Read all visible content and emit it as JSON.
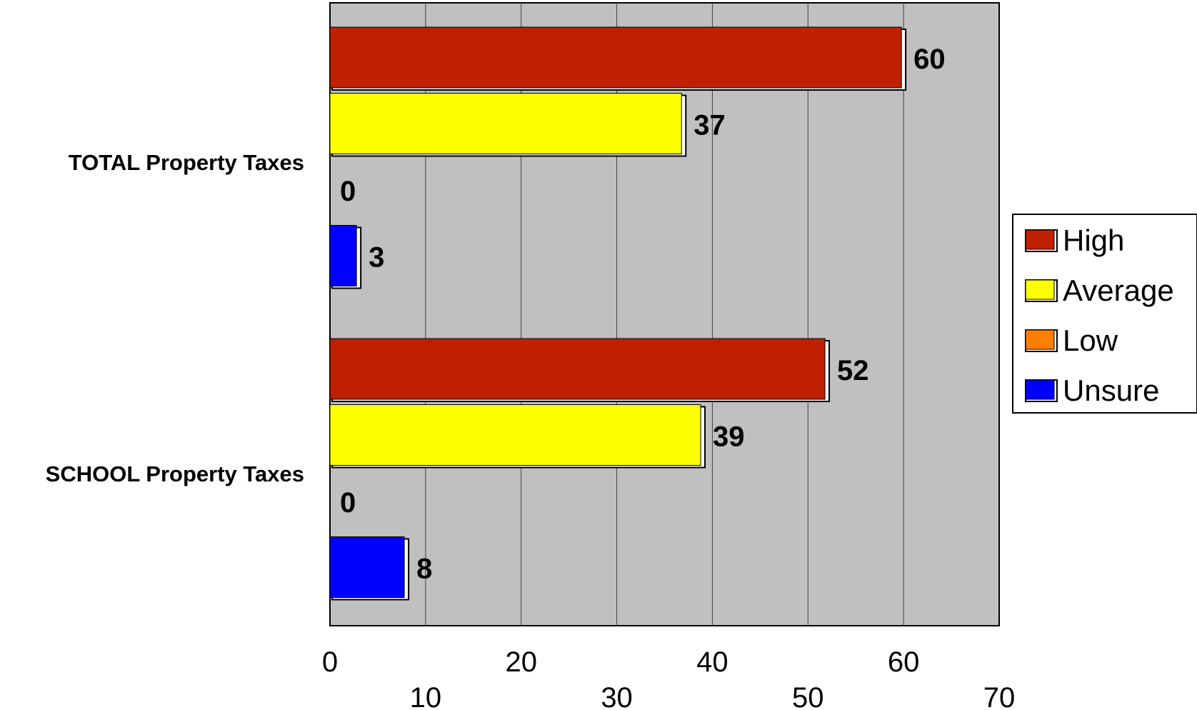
{
  "chart_data": {
    "type": "bar",
    "orientation": "horizontal",
    "categories": [
      "TOTAL Property Taxes",
      "SCHOOL Property Taxes"
    ],
    "series": [
      {
        "name": "High",
        "values": [
          60,
          52
        ],
        "color": "#BF2000"
      },
      {
        "name": "Average",
        "values": [
          37,
          39
        ],
        "color": "#FFFF00"
      },
      {
        "name": "Low",
        "values": [
          0,
          0
        ],
        "color": "#FF7F00"
      },
      {
        "name": "Unsure",
        "values": [
          3,
          8
        ],
        "color": "#0000FF"
      }
    ],
    "xlim": [
      0,
      70
    ],
    "xticks": [
      0,
      10,
      20,
      30,
      40,
      50,
      60,
      70
    ],
    "tick_labels": [
      "0",
      "10",
      "20",
      "30",
      "40",
      "50",
      "60",
      "70"
    ],
    "title": "",
    "xlabel": "",
    "ylabel": "",
    "grid": "vertical",
    "plot_background": "#C0C0C0",
    "legend_position": "right"
  }
}
